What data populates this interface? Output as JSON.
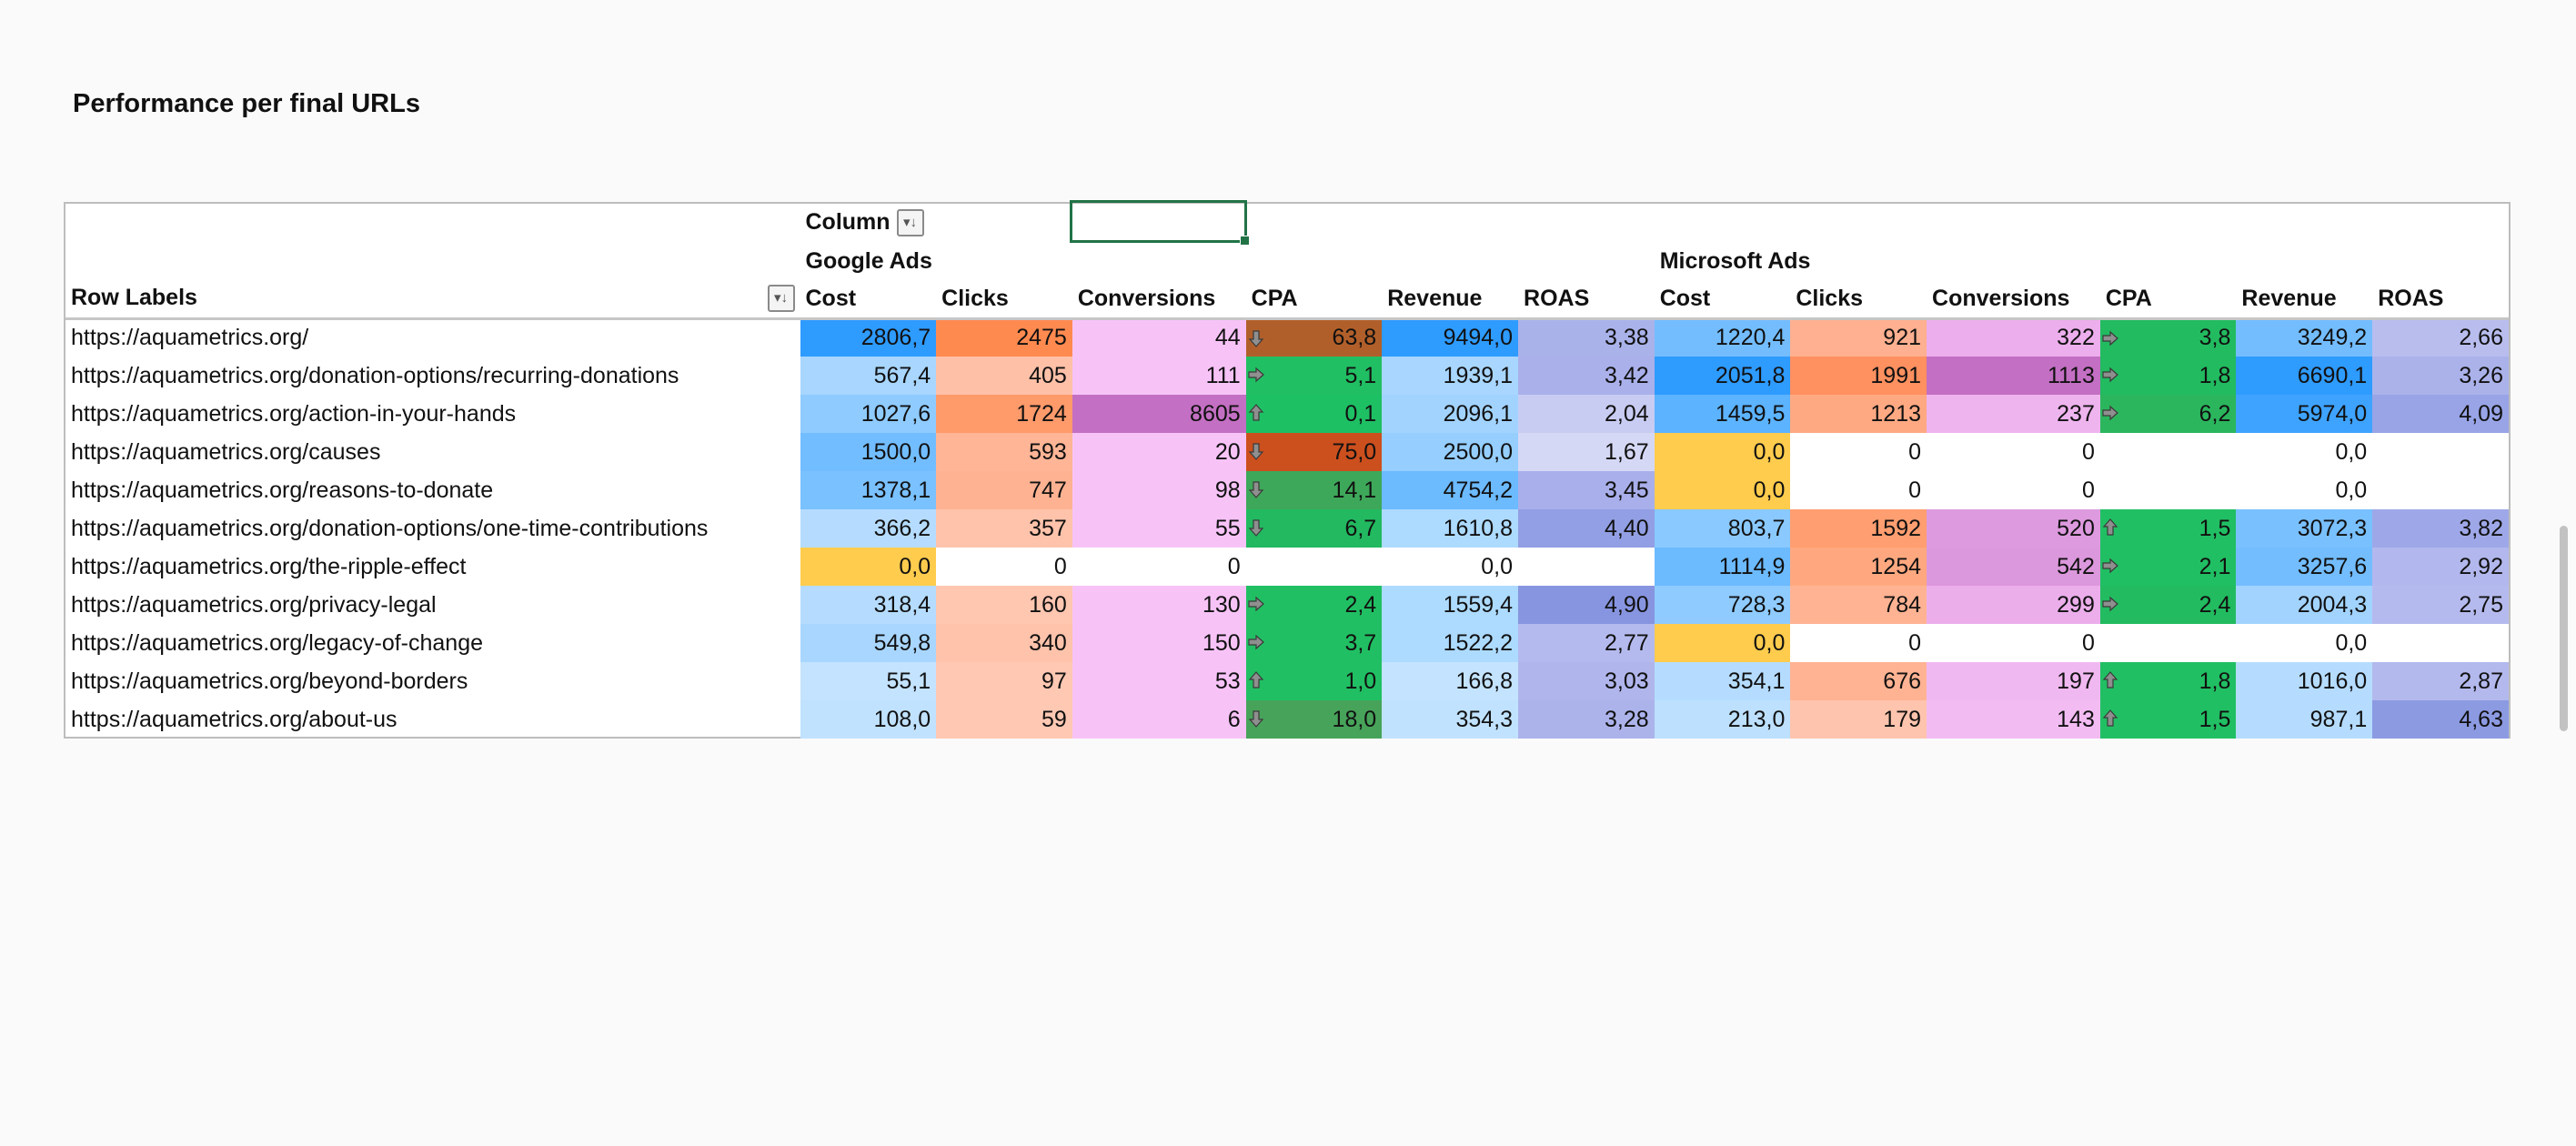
{
  "title": "Performance per final URLs",
  "pivot": {
    "column_label": "Column",
    "row_labels_header": "Row Labels",
    "groups": [
      "Google Ads",
      "Microsoft Ads"
    ],
    "measures": [
      "Cost",
      "Clicks",
      "Conversions",
      "CPA",
      "Revenue",
      "ROAS"
    ],
    "rows": [
      {
        "label": "https://aquametrics.org/",
        "cells": [
          {
            "v": "2806,7",
            "c": "#2e9bff"
          },
          {
            "v": "2475",
            "c": "#ff8a50"
          },
          {
            "v": "44",
            "c": "#f7c3f7"
          },
          {
            "v": "63,8",
            "c": "#b15f2a",
            "icon": "down"
          },
          {
            "v": "9494,0",
            "c": "#2e9bff"
          },
          {
            "v": "3,38",
            "c": "#aab2ea"
          },
          {
            "v": "1220,4",
            "c": "#73bdff"
          },
          {
            "v": "921",
            "c": "#ffb090"
          },
          {
            "v": "322",
            "c": "#ecaeec"
          },
          {
            "v": "3,8",
            "c": "#22bb60",
            "icon": "right"
          },
          {
            "v": "3249,2",
            "c": "#73bdff"
          },
          {
            "v": "2,66",
            "c": "#b8bdee"
          }
        ]
      },
      {
        "label": "https://aquametrics.org/donation-options/recurring-donations",
        "cells": [
          {
            "v": "567,4",
            "c": "#a8d6ff"
          },
          {
            "v": "405",
            "c": "#ffc0a8"
          },
          {
            "v": "111",
            "c": "#f7c3f7"
          },
          {
            "v": "5,1",
            "c": "#21bf63",
            "icon": "right"
          },
          {
            "v": "1939,1",
            "c": "#a8d6ff"
          },
          {
            "v": "3,42",
            "c": "#a9b0ea"
          },
          {
            "v": "2051,8",
            "c": "#2e9bff"
          },
          {
            "v": "1991",
            "c": "#ff9060"
          },
          {
            "v": "1113",
            "c": "#c36fc3"
          },
          {
            "v": "1,8",
            "c": "#22bb60",
            "icon": "right"
          },
          {
            "v": "6690,1",
            "c": "#2e9bff"
          },
          {
            "v": "3,26",
            "c": "#abb2ea"
          }
        ]
      },
      {
        "label": "https://aquametrics.org/action-in-your-hands",
        "cells": [
          {
            "v": "1027,6",
            "c": "#8fcbff"
          },
          {
            "v": "1724",
            "c": "#ff9a6a"
          },
          {
            "v": "8605",
            "c": "#c36fc3"
          },
          {
            "v": "0,1",
            "c": "#1ec064",
            "icon": "up"
          },
          {
            "v": "2096,1",
            "c": "#a2d3ff"
          },
          {
            "v": "2,04",
            "c": "#c8ccf2"
          },
          {
            "v": "1459,5",
            "c": "#5cb3ff"
          },
          {
            "v": "1213",
            "c": "#ffa983"
          },
          {
            "v": "237",
            "c": "#eeb4ee"
          },
          {
            "v": "6,2",
            "c": "#2bb65d",
            "icon": "right"
          },
          {
            "v": "5974,0",
            "c": "#3ea3ff"
          },
          {
            "v": "4,09",
            "c": "#98a4e6"
          }
        ]
      },
      {
        "label": "https://aquametrics.org/causes",
        "cells": [
          {
            "v": "1500,0",
            "c": "#72bdff"
          },
          {
            "v": "593",
            "c": "#ffb596"
          },
          {
            "v": "20",
            "c": "#f7c3f7"
          },
          {
            "v": "75,0",
            "c": "#cc4f1e",
            "icon": "down"
          },
          {
            "v": "2500,0",
            "c": "#95ceff"
          },
          {
            "v": "1,67",
            "c": "#d5d8f5"
          },
          {
            "v": "0,0",
            "c": "#ffcc4d"
          },
          {
            "v": "0",
            "c": "#ffffff"
          },
          {
            "v": "0",
            "c": "#ffffff"
          },
          {
            "v": "",
            "c": "#ffffff"
          },
          {
            "v": "0,0",
            "c": "#ffffff"
          },
          {
            "v": "",
            "c": "#ffffff"
          }
        ]
      },
      {
        "label": "https://aquametrics.org/reasons-to-donate",
        "cells": [
          {
            "v": "1378,1",
            "c": "#7ac1ff"
          },
          {
            "v": "747",
            "c": "#ffb292"
          },
          {
            "v": "98",
            "c": "#f7c3f7"
          },
          {
            "v": "14,1",
            "c": "#3ea85a",
            "icon": "down"
          },
          {
            "v": "4754,2",
            "c": "#6cbaff"
          },
          {
            "v": "3,45",
            "c": "#a8afea"
          },
          {
            "v": "0,0",
            "c": "#ffcc4d"
          },
          {
            "v": "0",
            "c": "#ffffff"
          },
          {
            "v": "0",
            "c": "#ffffff"
          },
          {
            "v": "",
            "c": "#ffffff"
          },
          {
            "v": "0,0",
            "c": "#ffffff"
          },
          {
            "v": "",
            "c": "#ffffff"
          }
        ]
      },
      {
        "label": "https://aquametrics.org/donation-options/one-time-contributions",
        "cells": [
          {
            "v": "366,2",
            "c": "#b5dcff"
          },
          {
            "v": "357",
            "c": "#ffc3ab"
          },
          {
            "v": "55",
            "c": "#f7c3f7"
          },
          {
            "v": "6,7",
            "c": "#22b960",
            "icon": "down"
          },
          {
            "v": "1610,8",
            "c": "#addaff"
          },
          {
            "v": "4,40",
            "c": "#929fe4"
          },
          {
            "v": "803,7",
            "c": "#8ac9ff"
          },
          {
            "v": "1592",
            "c": "#ff9e70"
          },
          {
            "v": "520",
            "c": "#dd9ade"
          },
          {
            "v": "1,5",
            "c": "#21bf63",
            "icon": "up"
          },
          {
            "v": "3072,3",
            "c": "#79c0ff"
          },
          {
            "v": "3,82",
            "c": "#9ea8e8"
          }
        ]
      },
      {
        "label": "https://aquametrics.org/the-ripple-effect",
        "cells": [
          {
            "v": "0,0",
            "c": "#ffcc4d"
          },
          {
            "v": "0",
            "c": "#ffffff"
          },
          {
            "v": "0",
            "c": "#ffffff"
          },
          {
            "v": "",
            "c": "#ffffff"
          },
          {
            "v": "0,0",
            "c": "#ffffff"
          },
          {
            "v": "",
            "c": "#ffffff"
          },
          {
            "v": "1114,9",
            "c": "#6cbaff"
          },
          {
            "v": "1254",
            "c": "#ffa880"
          },
          {
            "v": "542",
            "c": "#dc98dc"
          },
          {
            "v": "2,1",
            "c": "#21bf63",
            "icon": "right"
          },
          {
            "v": "3257,6",
            "c": "#73bdff"
          },
          {
            "v": "2,92",
            "c": "#b2b8ed"
          }
        ]
      },
      {
        "label": "https://aquametrics.org/privacy-legal",
        "cells": [
          {
            "v": "318,4",
            "c": "#b5dcff"
          },
          {
            "v": "160",
            "c": "#ffc6b0"
          },
          {
            "v": "130",
            "c": "#f7c3f7"
          },
          {
            "v": "2,4",
            "c": "#21bf63",
            "icon": "right"
          },
          {
            "v": "1559,4",
            "c": "#addaff"
          },
          {
            "v": "4,90",
            "c": "#8795e0"
          },
          {
            "v": "728,3",
            "c": "#8fcbff"
          },
          {
            "v": "784",
            "c": "#ffb393"
          },
          {
            "v": "299",
            "c": "#ebaeeb"
          },
          {
            "v": "2,4",
            "c": "#22bb60",
            "icon": "right"
          },
          {
            "v": "2004,3",
            "c": "#a2d3ff"
          },
          {
            "v": "2,75",
            "c": "#b5baee"
          }
        ]
      },
      {
        "label": "https://aquametrics.org/legacy-of-change",
        "cells": [
          {
            "v": "549,8",
            "c": "#a8d6ff"
          },
          {
            "v": "340",
            "c": "#ffc3ab"
          },
          {
            "v": "150",
            "c": "#f7c3f7"
          },
          {
            "v": "3,7",
            "c": "#21bf63",
            "icon": "right"
          },
          {
            "v": "1522,2",
            "c": "#addaff"
          },
          {
            "v": "2,77",
            "c": "#b5baee"
          },
          {
            "v": "0,0",
            "c": "#ffcc4d"
          },
          {
            "v": "0",
            "c": "#ffffff"
          },
          {
            "v": "0",
            "c": "#ffffff"
          },
          {
            "v": "",
            "c": "#ffffff"
          },
          {
            "v": "0,0",
            "c": "#ffffff"
          },
          {
            "v": "",
            "c": "#ffffff"
          }
        ]
      },
      {
        "label": "https://aquametrics.org/beyond-borders",
        "cells": [
          {
            "v": "55,1",
            "c": "#c4e3ff"
          },
          {
            "v": "97",
            "c": "#ffc8b3"
          },
          {
            "v": "53",
            "c": "#f7c3f7"
          },
          {
            "v": "1,0",
            "c": "#21bf63",
            "icon": "up"
          },
          {
            "v": "166,8",
            "c": "#c4e3ff"
          },
          {
            "v": "3,03",
            "c": "#b0b6ec"
          },
          {
            "v": "354,1",
            "c": "#b5dcff"
          },
          {
            "v": "676",
            "c": "#ffb393"
          },
          {
            "v": "197",
            "c": "#f0b8f0"
          },
          {
            "v": "1,8",
            "c": "#21bf63",
            "icon": "up"
          },
          {
            "v": "1016,0",
            "c": "#b5dcff"
          },
          {
            "v": "2,87",
            "c": "#b3b9ed"
          }
        ]
      },
      {
        "label": "https://aquametrics.org/about-us",
        "cells": [
          {
            "v": "108,0",
            "c": "#c0e2ff"
          },
          {
            "v": "59",
            "c": "#ffc8b3"
          },
          {
            "v": "6",
            "c": "#f7c3f7"
          },
          {
            "v": "18,0",
            "c": "#47a35a",
            "icon": "down"
          },
          {
            "v": "354,3",
            "c": "#c0e2ff"
          },
          {
            "v": "3,28",
            "c": "#acb3eb"
          },
          {
            "v": "213,0",
            "c": "#bde0ff"
          },
          {
            "v": "179",
            "c": "#ffc4ad"
          },
          {
            "v": "143",
            "c": "#f2bcf2"
          },
          {
            "v": "1,5",
            "c": "#21bf63",
            "icon": "up"
          },
          {
            "v": "987,1",
            "c": "#b5dcff"
          },
          {
            "v": "4,63",
            "c": "#8c9ae2"
          }
        ]
      }
    ]
  },
  "filter_icon": "sort-filter-icon",
  "selection_color": "#217346"
}
